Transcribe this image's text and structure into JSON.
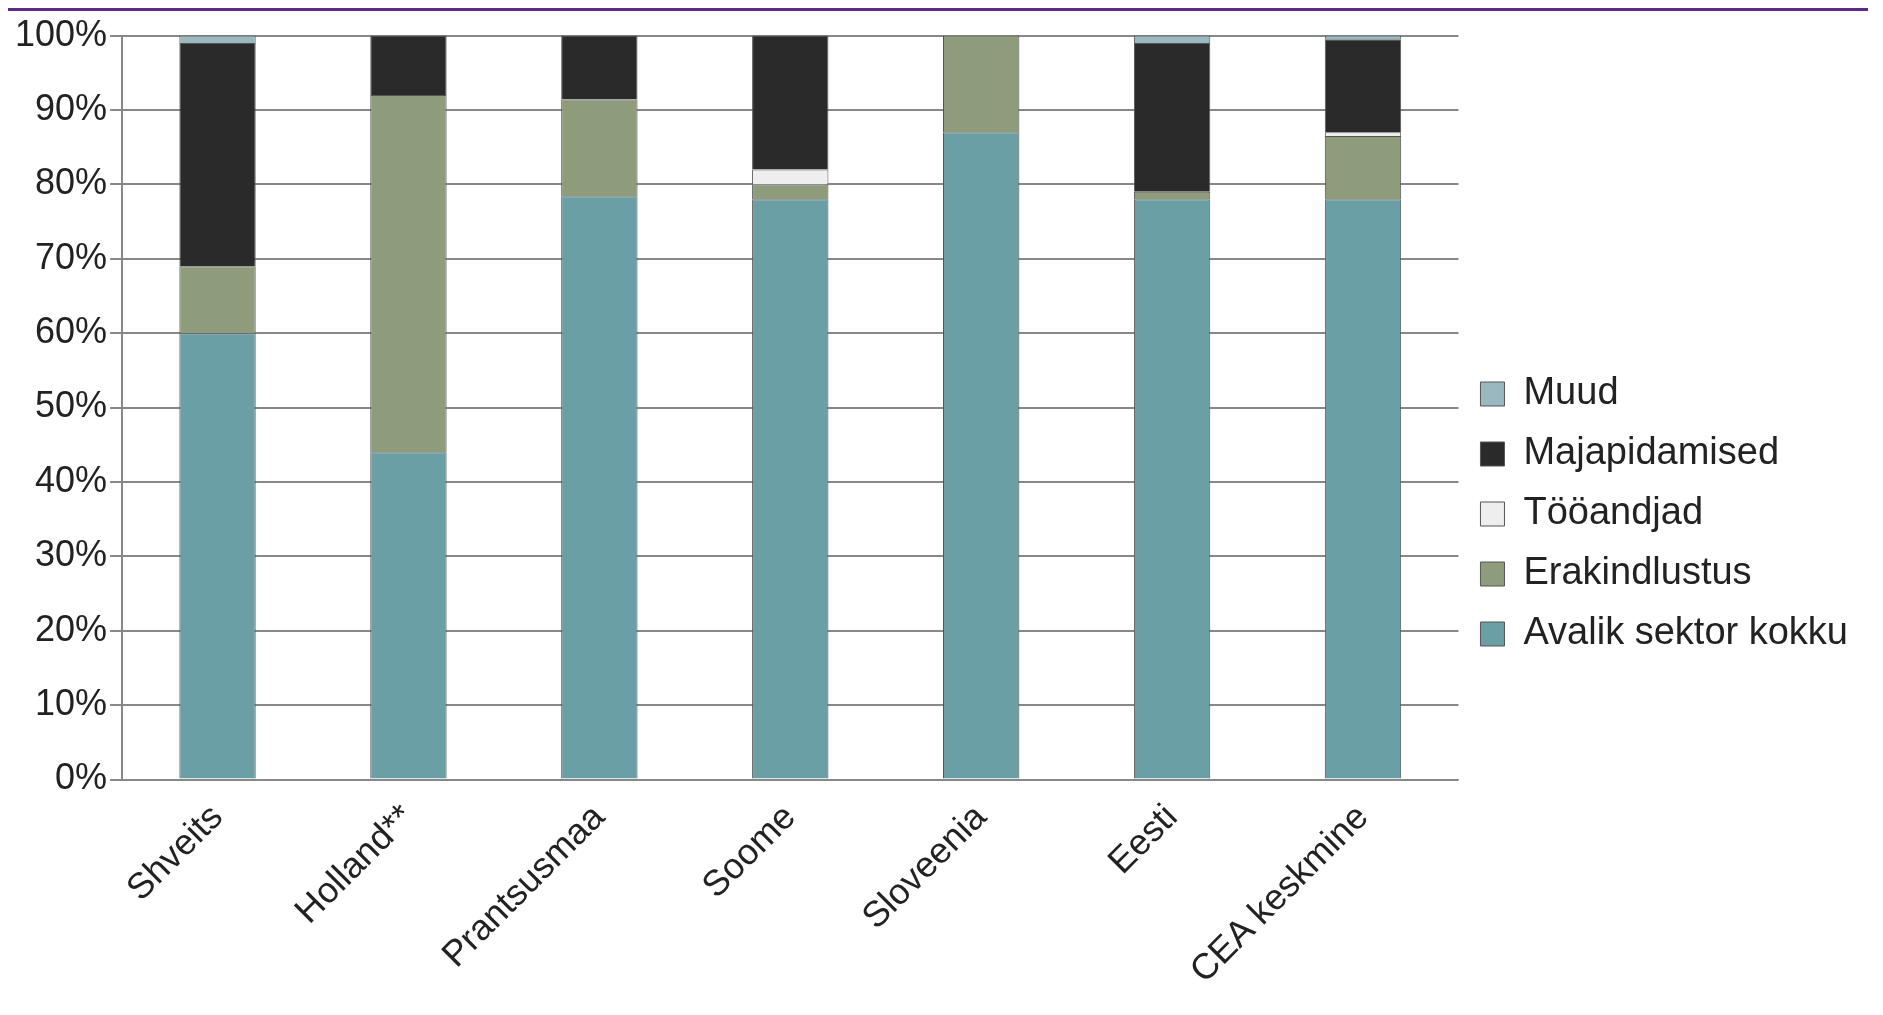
{
  "chart_data": {
    "type": "bar",
    "stacked": true,
    "categories": [
      "Shveits",
      "Holland**",
      "Prantsusmaa",
      "Soome",
      "Sloveenia",
      "Eesti",
      "CEA keskmine"
    ],
    "series": [
      {
        "name": "Avalik sektor kokku",
        "color": "#6a9fa5",
        "values": [
          60,
          44,
          78.4,
          78,
          87,
          78,
          78
        ]
      },
      {
        "name": "Erakindlustus",
        "color": "#8e9c7c",
        "values": [
          9,
          48,
          13,
          2,
          13,
          1,
          8.5
        ]
      },
      {
        "name": "Tööandjad",
        "color": "#eeeeee",
        "values": [
          0,
          0,
          0,
          2,
          0,
          0,
          0.5
        ]
      },
      {
        "name": "Majapidamised",
        "color": "#2a2a2a",
        "values": [
          30,
          8,
          8.6,
          18,
          0,
          20,
          12.5
        ]
      },
      {
        "name": "Muud",
        "color": "#9ab8bf",
        "values": [
          1,
          0,
          0,
          0,
          0,
          1,
          0.5
        ]
      }
    ],
    "ylim": [
      0,
      100
    ],
    "yticks": [
      {
        "value": 0,
        "label": "0%"
      },
      {
        "value": 10,
        "label": "10%"
      },
      {
        "value": 20,
        "label": "20%"
      },
      {
        "value": 30,
        "label": "30%"
      },
      {
        "value": 40,
        "label": "40%"
      },
      {
        "value": 50,
        "label": "50%"
      },
      {
        "value": 60,
        "label": "60%"
      },
      {
        "value": 70,
        "label": "70%"
      },
      {
        "value": 80,
        "label": "80%"
      },
      {
        "value": 90,
        "label": "90%"
      },
      {
        "value": 100,
        "label": "100%"
      }
    ],
    "grid": "y",
    "legend": "right"
  }
}
